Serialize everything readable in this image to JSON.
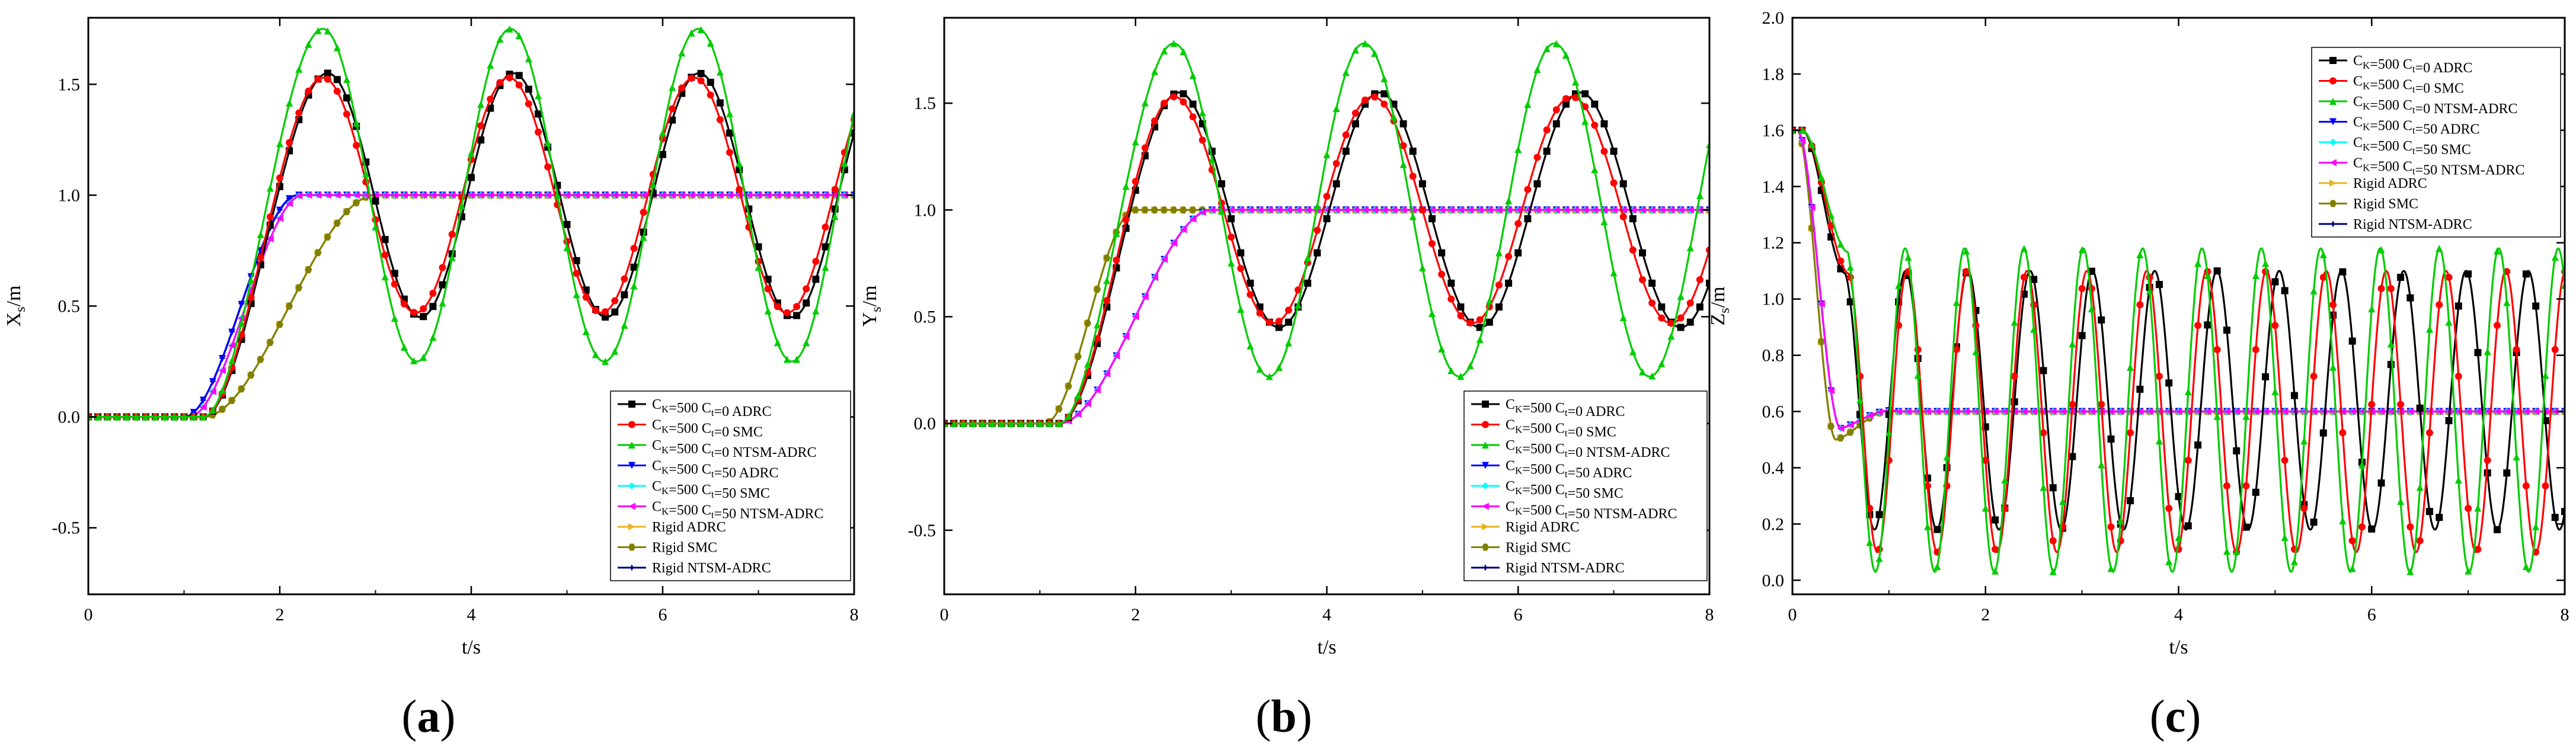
{
  "legend_names": [
    "C_K=500 C_t=0 ADRC",
    "C_K=500 C_t=0 SMC",
    "C_K=500 C_t=0 NTSM-ADRC",
    "C_K=500 C_t=50 ADRC",
    "C_K=500 C_t=50 SMC",
    "C_K=500 C_t=50 NTSM-ADRC",
    "Rigid  ADRC",
    "Rigid  SMC",
    "Rigid  NTSM-ADRC"
  ],
  "series_colors": [
    "#000000",
    "#ff0000",
    "#00cc00",
    "#0000ff",
    "#00ffff",
    "#ff00ff",
    "#e6b422",
    "#808000",
    "#000080"
  ],
  "chart_data": [
    {
      "type": "line",
      "panel_label": "a",
      "title": "",
      "xlabel": "t/s",
      "ylabel_main": "X",
      "ylabel_sub": "s",
      "ylabel_unit": "/m",
      "xlim": [
        0,
        8
      ],
      "ylim": [
        -0.8,
        1.8
      ],
      "xticks": [
        0,
        2,
        4,
        6,
        8
      ],
      "xtick_labels": [
        "0",
        "2",
        "4",
        "6",
        "8"
      ],
      "yticks": [
        -0.5,
        0.0,
        0.5,
        1.0,
        1.5
      ],
      "ytick_labels": [
        "-0.5",
        "0.0",
        "0.5",
        "1.0",
        "1.5"
      ],
      "legend_position": "bottom-right",
      "flex_rise": 2.45,
      "flex_t0": 1.2,
      "flex_mean": 1.0,
      "series": [
        {
          "name": "C_K=500 C_t=0 ADRC",
          "kind": "osc",
          "amp": 0.54,
          "period": 1.94,
          "first_peak": 2.5,
          "peak": 1.55,
          "trough": 0.45
        },
        {
          "name": "C_K=500 C_t=0 SMC",
          "kind": "osc",
          "amp": 0.53,
          "period": 1.94,
          "first_peak": 2.45,
          "peak": 1.53,
          "trough": 0.45
        },
        {
          "name": "C_K=500 C_t=0 NTSM-ADRC",
          "kind": "osc",
          "amp": 0.75,
          "period": 1.96,
          "first_peak": 2.45,
          "peak": 1.75,
          "trough": 0.25
        },
        {
          "name": "C_K=500 C_t=50 ADRC",
          "kind": "step",
          "final": 1.0,
          "t0": 1.0,
          "t1": 2.2,
          "overshoot": 0.015
        },
        {
          "name": "C_K=500 C_t=50 SMC",
          "kind": "step",
          "final": 1.0,
          "t0": 1.05,
          "t1": 2.25,
          "overshoot": 0.015
        },
        {
          "name": "C_K=500 C_t=50 NTSM-ADRC",
          "kind": "step",
          "final": 1.0,
          "t0": 1.05,
          "t1": 2.25,
          "overshoot": 0.015
        },
        {
          "name": "Rigid  ADRC",
          "kind": "step",
          "final": 1.0,
          "t0": 1.2,
          "t1": 3.0,
          "overshoot": 0.0
        },
        {
          "name": "Rigid  SMC",
          "kind": "step",
          "final": 1.0,
          "t0": 1.2,
          "t1": 3.0,
          "overshoot": 0.0
        },
        {
          "name": "Rigid  NTSM-ADRC",
          "kind": "step",
          "final": 1.0,
          "t0": 1.0,
          "t1": 2.2,
          "overshoot": 0.02
        }
      ]
    },
    {
      "type": "line",
      "panel_label": "b",
      "title": "",
      "xlabel": "t/s",
      "ylabel_main": "Y",
      "ylabel_sub": "s",
      "ylabel_unit": "/m",
      "xlim": [
        0,
        8
      ],
      "ylim": [
        -0.8,
        1.9
      ],
      "xticks": [
        0,
        2,
        4,
        6,
        8
      ],
      "xtick_labels": [
        "0",
        "2",
        "4",
        "6",
        "8"
      ],
      "yticks": [
        -0.5,
        0.0,
        0.5,
        1.0,
        1.5
      ],
      "ytick_labels": [
        "-0.5",
        "0.0",
        "0.5",
        "1.0",
        "1.5"
      ],
      "legend_position": "bottom-right",
      "flex_rise": 2.45,
      "flex_t0": 1.2,
      "flex_mean": 1.0,
      "series": [
        {
          "name": "C_K=500 C_t=0 ADRC",
          "kind": "osc",
          "amp": 0.54,
          "period": 2.1,
          "first_peak": 2.45,
          "peak": 1.55,
          "trough": 0.45
        },
        {
          "name": "C_K=500 C_t=0 SMC",
          "kind": "osc",
          "amp": 0.53,
          "period": 2.08,
          "first_peak": 2.4,
          "peak": 1.53,
          "trough": 0.46
        },
        {
          "name": "C_K=500 C_t=0 NTSM-ADRC",
          "kind": "osc",
          "amp": 0.78,
          "period": 1.99,
          "first_peak": 2.4,
          "peak": 1.78,
          "trough": 0.21
        },
        {
          "name": "C_K=500 C_t=50 ADRC",
          "kind": "step",
          "final": 1.0,
          "t0": 1.2,
          "t1": 2.8,
          "overshoot": 0.0
        },
        {
          "name": "C_K=500 C_t=50 SMC",
          "kind": "step",
          "final": 1.0,
          "t0": 1.2,
          "t1": 2.8,
          "overshoot": 0.0
        },
        {
          "name": "C_K=500 C_t=50 NTSM-ADRC",
          "kind": "step",
          "final": 1.0,
          "t0": 1.2,
          "t1": 2.8,
          "overshoot": 0.0
        },
        {
          "name": "Rigid  ADRC",
          "kind": "step",
          "final": 1.0,
          "t0": 1.05,
          "t1": 2.0,
          "overshoot": 0.02
        },
        {
          "name": "Rigid  SMC",
          "kind": "step",
          "final": 1.0,
          "t0": 1.05,
          "t1": 2.0,
          "overshoot": 0.02
        },
        {
          "name": "Rigid  NTSM-ADRC",
          "kind": "step",
          "final": 1.0,
          "t0": 1.2,
          "t1": 2.8,
          "overshoot": 0.0
        }
      ]
    },
    {
      "type": "line",
      "panel_label": "c",
      "title": "",
      "xlabel": "t/s",
      "ylabel_main": "Z",
      "ylabel_sub": "s",
      "ylabel_unit": "/m",
      "xlim": [
        0,
        8
      ],
      "ylim": [
        -0.05,
        2.0
      ],
      "xticks": [
        0,
        2,
        4,
        6,
        8
      ],
      "xtick_labels": [
        "0",
        "2",
        "4",
        "6",
        "8"
      ],
      "yticks": [
        0.0,
        0.2,
        0.4,
        0.6,
        0.8,
        1.0,
        1.2,
        1.4,
        1.6,
        1.8,
        2.0
      ],
      "ytick_labels": [
        "0.0",
        "0.2",
        "0.4",
        "0.6",
        "0.8",
        "1.0",
        "1.2",
        "1.4",
        "1.6",
        "1.8",
        "2.0"
      ],
      "legend_position": "top-right",
      "z_start": 1.6,
      "z_final": 0.6,
      "series": [
        {
          "name": "C_K=500 C_t=0 ADRC",
          "kind": "zosc",
          "amp": 0.42,
          "period": 0.645,
          "first_trough": 0.85,
          "peak": 1.1,
          "trough": 0.18
        },
        {
          "name": "C_K=500 C_t=0 SMC",
          "kind": "zosc",
          "amp": 0.48,
          "period": 0.62,
          "first_trough": 0.88,
          "peak": 1.1,
          "trough": 0.1
        },
        {
          "name": "C_K=500 C_t=0 NTSM-ADRC",
          "kind": "zosc",
          "amp": 0.58,
          "period": 0.615,
          "first_trough": 0.86,
          "peak": 1.18,
          "trough": 0.03
        },
        {
          "name": "C_K=500 C_t=50 ADRC",
          "kind": "zstep",
          "dip": 0.54,
          "t_dip": 0.5
        },
        {
          "name": "C_K=500 C_t=50 SMC",
          "kind": "zstep",
          "dip": 0.54,
          "t_dip": 0.5
        },
        {
          "name": "C_K=500 C_t=50 NTSM-ADRC",
          "kind": "zstep",
          "dip": 0.54,
          "t_dip": 0.5
        },
        {
          "name": "Rigid  ADRC",
          "kind": "zstep",
          "dip": 0.5,
          "t_dip": 0.45
        },
        {
          "name": "Rigid  SMC",
          "kind": "zstep",
          "dip": 0.5,
          "t_dip": 0.45
        },
        {
          "name": "Rigid  NTSM-ADRC",
          "kind": "zstep",
          "dip": 0.54,
          "t_dip": 0.5
        }
      ]
    }
  ]
}
